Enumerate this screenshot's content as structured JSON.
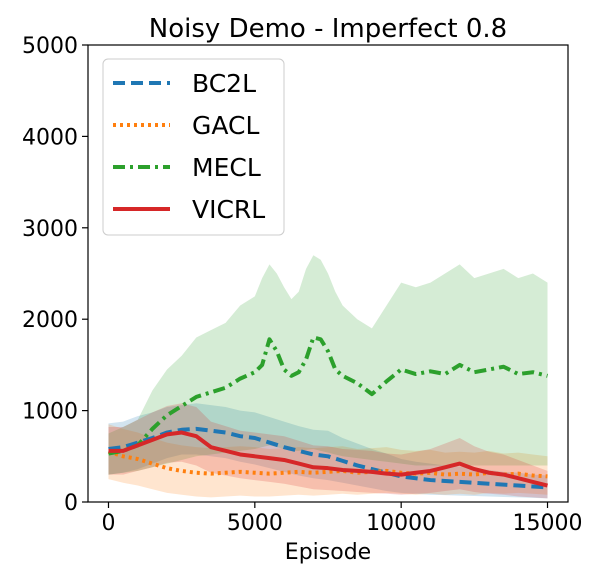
{
  "chart_data": {
    "type": "line",
    "title": "Noisy Demo - Imperfect 0.8",
    "xlabel": "Episode",
    "ylabel": "",
    "xlim": [
      -700,
      15700
    ],
    "ylim": [
      0,
      5000
    ],
    "xticks": [
      0,
      5000,
      10000,
      15000
    ],
    "xtick_labels": [
      "0",
      "5000",
      "10000",
      "15000"
    ],
    "yticks": [
      0,
      1000,
      2000,
      3000,
      4000,
      5000
    ],
    "ytick_labels": [
      "0",
      "1000",
      "2000",
      "3000",
      "4000",
      "5000"
    ],
    "grid": false,
    "legend_position": "top-left",
    "series": [
      {
        "name": "BC2L",
        "color": "#1f77b4",
        "linestyle": "dashed",
        "x": [
          0,
          500,
          1000,
          1500,
          2000,
          2500,
          3000,
          3500,
          4000,
          4500,
          5000,
          5500,
          6000,
          6500,
          7000,
          7500,
          8000,
          8500,
          9000,
          9500,
          10000,
          10500,
          11000,
          11500,
          12000,
          12500,
          13000,
          13500,
          14000,
          14500,
          15000
        ],
        "y": [
          580,
          600,
          650,
          700,
          760,
          790,
          800,
          780,
          760,
          720,
          700,
          650,
          600,
          560,
          520,
          500,
          450,
          400,
          360,
          320,
          280,
          260,
          240,
          230,
          220,
          210,
          200,
          190,
          180,
          170,
          160
        ],
        "band_low": [
          300,
          320,
          360,
          420,
          480,
          520,
          520,
          500,
          480,
          440,
          410,
          370,
          330,
          290,
          260,
          240,
          210,
          180,
          150,
          120,
          100,
          90,
          80,
          75,
          70,
          65,
          60,
          55,
          50,
          45,
          40
        ],
        "band_high": [
          860,
          880,
          940,
          980,
          1040,
          1060,
          1080,
          1060,
          1040,
          1000,
          980,
          930,
          880,
          830,
          790,
          780,
          700,
          640,
          580,
          530,
          470,
          440,
          420,
          400,
          390,
          370,
          350,
          330,
          320,
          300,
          290
        ]
      },
      {
        "name": "GACL",
        "color": "#ff7f0e",
        "linestyle": "dotted",
        "x": [
          0,
          500,
          1000,
          1500,
          2000,
          2500,
          3000,
          3500,
          4000,
          4500,
          5000,
          5500,
          6000,
          6500,
          7000,
          7500,
          8000,
          8500,
          9000,
          9500,
          10000,
          10500,
          11000,
          11500,
          12000,
          12500,
          13000,
          13500,
          14000,
          14500,
          15000
        ],
        "y": [
          550,
          500,
          470,
          420,
          370,
          340,
          320,
          310,
          320,
          330,
          320,
          310,
          320,
          330,
          320,
          330,
          340,
          320,
          330,
          340,
          320,
          310,
          320,
          300,
          310,
          300,
          320,
          300,
          310,
          290,
          280
        ],
        "band_low": [
          250,
          210,
          180,
          140,
          100,
          80,
          60,
          50,
          60,
          70,
          60,
          60,
          70,
          80,
          70,
          80,
          90,
          80,
          90,
          100,
          90,
          80,
          90,
          80,
          90,
          80,
          100,
          90,
          100,
          90,
          80
        ],
        "band_high": [
          850,
          800,
          760,
          700,
          650,
          620,
          600,
          590,
          600,
          610,
          600,
          580,
          590,
          600,
          590,
          600,
          610,
          580,
          590,
          600,
          570,
          560,
          570,
          540,
          550,
          540,
          560,
          530,
          540,
          520,
          500
        ]
      },
      {
        "name": "MECL",
        "color": "#2ca02c",
        "linestyle": "dashdot",
        "x": [
          0,
          500,
          1000,
          1500,
          2000,
          2500,
          3000,
          3500,
          4000,
          4500,
          5000,
          5250,
          5500,
          5750,
          6000,
          6250,
          6500,
          6750,
          7000,
          7250,
          7500,
          7750,
          8000,
          8500,
          9000,
          9500,
          10000,
          10500,
          11000,
          11500,
          12000,
          12500,
          13000,
          13500,
          14000,
          14500,
          15000
        ],
        "y": [
          530,
          560,
          620,
          800,
          950,
          1050,
          1150,
          1200,
          1250,
          1350,
          1420,
          1500,
          1780,
          1650,
          1450,
          1380,
          1420,
          1560,
          1800,
          1780,
          1650,
          1450,
          1380,
          1300,
          1180,
          1320,
          1450,
          1400,
          1430,
          1400,
          1500,
          1420,
          1450,
          1480,
          1400,
          1420,
          1380
        ],
        "band_low": [
          300,
          320,
          340,
          380,
          420,
          460,
          500,
          520,
          540,
          560,
          580,
          600,
          620,
          600,
          580,
          560,
          560,
          570,
          580,
          560,
          540,
          520,
          500,
          480,
          460,
          440,
          420,
          400,
          400,
          400,
          400,
          400,
          400,
          400,
          400,
          400,
          400
        ],
        "band_high": [
          750,
          820,
          900,
          1220,
          1450,
          1600,
          1800,
          1880,
          1960,
          2150,
          2250,
          2450,
          2600,
          2500,
          2350,
          2220,
          2300,
          2550,
          2700,
          2650,
          2500,
          2300,
          2150,
          2000,
          1900,
          2150,
          2400,
          2350,
          2400,
          2500,
          2600,
          2450,
          2500,
          2550,
          2450,
          2500,
          2400
        ]
      },
      {
        "name": "VICRL",
        "color": "#d62728",
        "linestyle": "solid",
        "x": [
          0,
          500,
          1000,
          1500,
          2000,
          2500,
          3000,
          3500,
          4000,
          4500,
          5000,
          5500,
          6000,
          6500,
          7000,
          7500,
          8000,
          8500,
          9000,
          9500,
          10000,
          10500,
          11000,
          11500,
          12000,
          12500,
          13000,
          13500,
          14000,
          14500,
          15000
        ],
        "y": [
          560,
          560,
          620,
          680,
          740,
          760,
          720,
          600,
          560,
          520,
          500,
          480,
          460,
          420,
          380,
          370,
          350,
          340,
          330,
          310,
          300,
          320,
          340,
          380,
          420,
          360,
          320,
          300,
          260,
          220,
          180
        ],
        "band_low": [
          300,
          300,
          340,
          380,
          430,
          440,
          400,
          320,
          290,
          260,
          240,
          220,
          200,
          170,
          140,
          130,
          120,
          110,
          100,
          90,
          80,
          90,
          100,
          120,
          140,
          110,
          90,
          80,
          60,
          50,
          40
        ],
        "band_high": [
          820,
          820,
          900,
          980,
          1050,
          1080,
          1040,
          880,
          830,
          780,
          760,
          740,
          720,
          670,
          620,
          610,
          580,
          570,
          560,
          530,
          520,
          550,
          580,
          640,
          700,
          610,
          550,
          520,
          460,
          400,
          340
        ]
      }
    ]
  }
}
